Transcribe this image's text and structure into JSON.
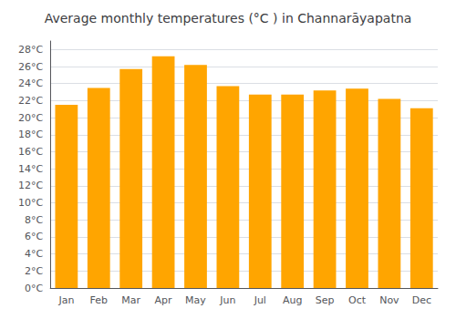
{
  "chart_data": {
    "type": "bar",
    "title": "Average monthly temperatures (°C ) in Channarāyapatna",
    "categories": [
      "Jan",
      "Feb",
      "Mar",
      "Apr",
      "May",
      "Jun",
      "Jul",
      "Aug",
      "Sep",
      "Oct",
      "Nov",
      "Dec"
    ],
    "values": [
      21.5,
      23.5,
      25.7,
      27.2,
      26.2,
      23.7,
      22.7,
      22.7,
      23.2,
      23.4,
      22.2,
      21.1
    ],
    "color": "#FFA500",
    "ylim": [
      0,
      29
    ],
    "yticks": [
      {
        "value": 0,
        "label": "0°C"
      },
      {
        "value": 2,
        "label": "2°C"
      },
      {
        "value": 4,
        "label": "4°C"
      },
      {
        "value": 6,
        "label": "6°C"
      },
      {
        "value": 8,
        "label": "8°C"
      },
      {
        "value": 10,
        "label": "10°C"
      },
      {
        "value": 12,
        "label": "12°C"
      },
      {
        "value": 14,
        "label": "14°C"
      },
      {
        "value": 16,
        "label": "16°C"
      },
      {
        "value": 18,
        "label": "18°C"
      },
      {
        "value": 20,
        "label": "20°C"
      },
      {
        "value": 22,
        "label": "22°C"
      },
      {
        "value": 24,
        "label": "24°C"
      },
      {
        "value": 26,
        "label": "26°C"
      },
      {
        "value": 28,
        "label": "28°C"
      }
    ],
    "grid": true
  }
}
